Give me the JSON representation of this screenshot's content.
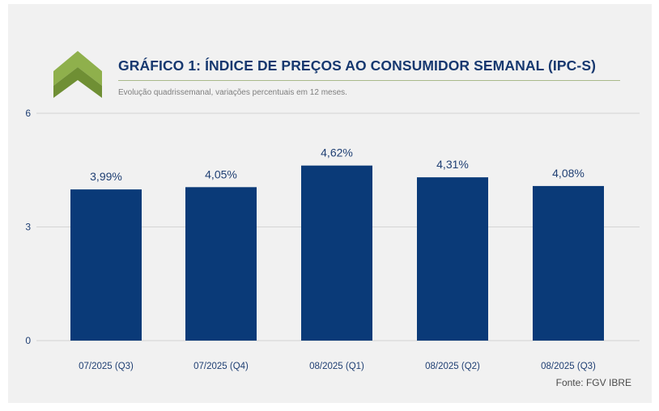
{
  "header": {
    "title": "GRÁFICO 1: ÍNDICE DE PREÇOS AO CONSUMIDOR SEMANAL (IPC-S)",
    "subtitle": "Evolução quadrissemanal, variações percentuais em 12 meses."
  },
  "footer": {
    "source": "Fonte: FGV IBRE"
  },
  "colors": {
    "bar": "#0a3a78",
    "text": "#16386f",
    "grid": "#d4d4d4",
    "logo_light": "#8fb04c",
    "logo_dark": "#6f8f34"
  },
  "chart_data": {
    "type": "bar",
    "title": "GRÁFICO 1: ÍNDICE DE PREÇOS AO CONSUMIDOR SEMANAL (IPC-S)",
    "subtitle": "Evolução quadrissemanal, variações percentuais em 12 meses.",
    "categories": [
      "07/2025 (Q3)",
      "07/2025 (Q4)",
      "08/2025 (Q1)",
      "08/2025 (Q2)",
      "08/2025 (Q3)"
    ],
    "values": [
      3.99,
      4.05,
      4.62,
      4.31,
      4.08
    ],
    "data_labels": [
      "3,99%",
      "4,05%",
      "4,62%",
      "4,31%",
      "4,08%"
    ],
    "xlabel": "",
    "ylabel": "",
    "ylim": [
      0,
      6
    ],
    "yticks": [
      "0",
      "3",
      "6"
    ],
    "grid": true,
    "legend": "none"
  }
}
